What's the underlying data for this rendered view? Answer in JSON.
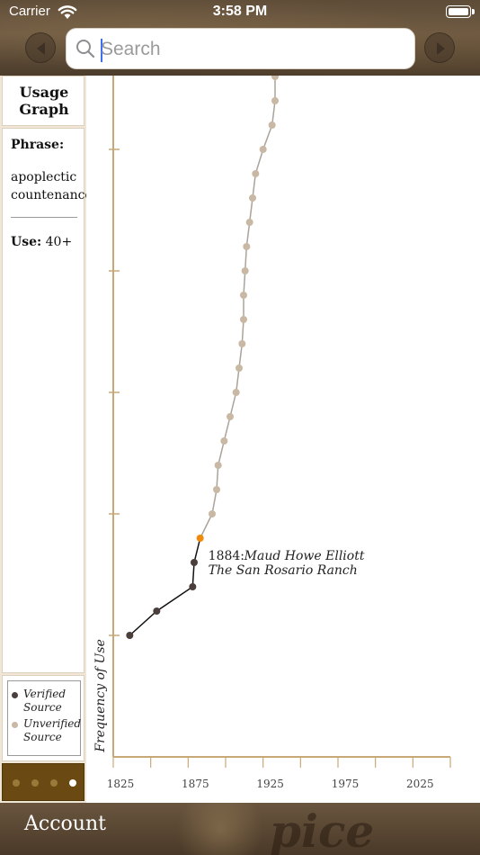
{
  "status_bar": {
    "carrier": "Carrier",
    "time": "3:58 PM"
  },
  "search": {
    "placeholder": "Search",
    "value": ""
  },
  "sidebar": {
    "title": "Usage Graph",
    "phrase_label": "Phrase:",
    "phrase": "apoplectic countenance",
    "use_label": "Use:",
    "use_value": "40+",
    "legend": [
      {
        "label": "Verified Source",
        "color": "#4a3f3c"
      },
      {
        "label": "Unverified Source",
        "color": "#c9b8a3"
      }
    ],
    "pager": {
      "count": 4,
      "active_index": 3
    }
  },
  "bottom_bar": {
    "account_label": "Account",
    "decorative_text": "pice"
  },
  "colors": {
    "verified": "#4a3f3c",
    "unverified": "#c9b8a3",
    "highlight": "#f08a0c",
    "axis": "#c9a878"
  },
  "chart_data": {
    "type": "line",
    "title": "",
    "xlabel": "",
    "ylabel": "Frequency of Use",
    "xlim": [
      1825,
      2050
    ],
    "ylim": [
      0,
      28
    ],
    "x_ticks": [
      1825,
      1875,
      1925,
      1975,
      2025
    ],
    "y_ticks": [
      5,
      10,
      15,
      20,
      25
    ],
    "highlight": {
      "year": 1884,
      "label_year": "1884:",
      "author": "Maud Howe Elliott",
      "work": "The San Rosario Ranch"
    },
    "series": [
      {
        "name": "Verified Source",
        "color": "#4a3f3c",
        "points": [
          [
            1836,
            5
          ],
          [
            1854,
            6
          ],
          [
            1878,
            7
          ],
          [
            1879,
            8
          ],
          [
            1883,
            9
          ]
        ]
      },
      {
        "name": "Unverified Source",
        "color": "#c9b8a3",
        "points": [
          [
            1883,
            9
          ],
          [
            1891,
            10
          ],
          [
            1894,
            11
          ],
          [
            1895,
            12
          ],
          [
            1899,
            13
          ],
          [
            1903,
            14
          ],
          [
            1907,
            15
          ],
          [
            1909,
            16
          ],
          [
            1911,
            17
          ],
          [
            1912,
            18
          ],
          [
            1912,
            19
          ],
          [
            1913,
            20
          ],
          [
            1914,
            21
          ],
          [
            1916,
            22
          ],
          [
            1918,
            23
          ],
          [
            1920,
            24
          ],
          [
            1925,
            25
          ],
          [
            1931,
            26
          ],
          [
            1933,
            27
          ],
          [
            1933,
            28
          ],
          [
            1932,
            29
          ]
        ]
      }
    ]
  }
}
